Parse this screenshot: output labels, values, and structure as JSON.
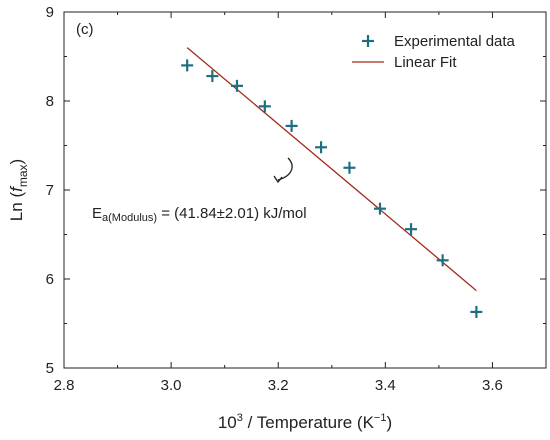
{
  "chart_data": {
    "type": "scatter",
    "panel_label": "(c)",
    "xlabel": {
      "base": "10",
      "sup": "3",
      "text": " / Temperature (K",
      "sup2": "−1",
      "end": ")"
    },
    "ylabel": {
      "pre": "Ln (",
      "f": "f",
      "sub": "max",
      "post": ")"
    },
    "xlim": [
      2.8,
      3.7
    ],
    "ylim": [
      5,
      9
    ],
    "xticks": [
      "2.8",
      "3.0",
      "3.2",
      "3.4",
      "3.6"
    ],
    "xtick_values": [
      2.8,
      3.0,
      3.2,
      3.4,
      3.6
    ],
    "yticks": [
      "5",
      "6",
      "7",
      "8",
      "9"
    ],
    "ytick_values": [
      5,
      6,
      7,
      8,
      9
    ],
    "grid": false,
    "legend_position": "top-right",
    "series": [
      {
        "name": "Experimental data",
        "marker": "plus",
        "color": "#1f6f80",
        "x": [
          3.03,
          3.077,
          3.123,
          3.175,
          3.225,
          3.28,
          3.333,
          3.39,
          3.448,
          3.507,
          3.57
        ],
        "y": [
          8.4,
          8.28,
          8.17,
          7.94,
          7.72,
          7.48,
          7.25,
          6.79,
          6.56,
          6.21,
          5.63
        ]
      },
      {
        "name": "Linear Fit",
        "marker": "line",
        "color": "#a52a1a",
        "x": [
          3.03,
          3.57
        ],
        "y": [
          8.6,
          5.87
        ]
      }
    ],
    "annotation": {
      "E": "E",
      "sub": "a(Modulus)",
      "rest": " = (41.84±2.01) kJ/mol"
    },
    "arrow_color": "#222222"
  }
}
